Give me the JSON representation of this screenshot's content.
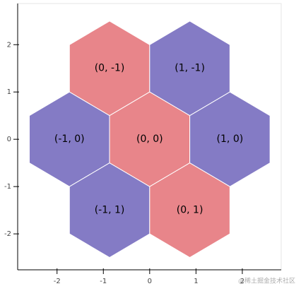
{
  "chart_data": {
    "type": "hex",
    "tiles": [
      {
        "q": 0,
        "r": -1,
        "label": "(0, -1)",
        "color": "#e8858a"
      },
      {
        "q": 1,
        "r": -1,
        "label": "(1, -1)",
        "color": "#847bc5"
      },
      {
        "q": -1,
        "r": 0,
        "label": "(-1, 0)",
        "color": "#847bc5"
      },
      {
        "q": 0,
        "r": 0,
        "label": "(0, 0)",
        "color": "#e8858a"
      },
      {
        "q": 1,
        "r": 0,
        "label": "(1, 0)",
        "color": "#847bc5"
      },
      {
        "q": -1,
        "r": 1,
        "label": "(-1, 1)",
        "color": "#847bc5"
      },
      {
        "q": 0,
        "r": 1,
        "label": "(0, 1)",
        "color": "#e8858a"
      }
    ],
    "xlim": [
      -2.85,
      2.84
    ],
    "ylim": [
      -2.76,
      2.87
    ],
    "xticks": [
      -2,
      -1,
      0,
      1,
      2
    ],
    "yticks": [
      -2,
      -1,
      0,
      1,
      2
    ],
    "watermark": "@稀土掘金技术社区"
  }
}
